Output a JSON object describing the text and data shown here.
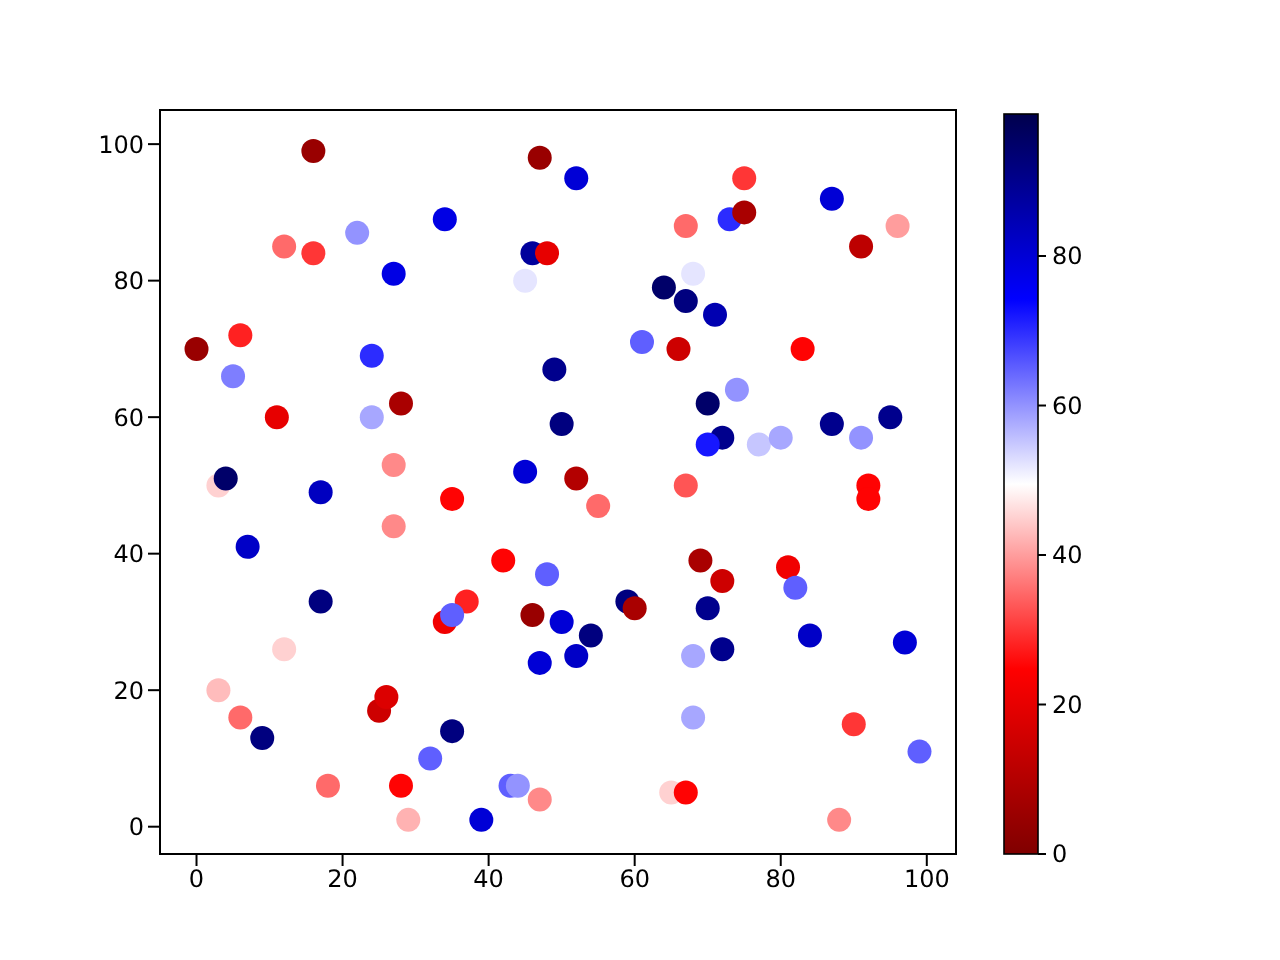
{
  "chart_data": {
    "type": "scatter",
    "xlim": [
      -5,
      104
    ],
    "ylim": [
      -4,
      105
    ],
    "xticks": [
      0,
      20,
      40,
      60,
      80,
      100
    ],
    "yticks": [
      0,
      20,
      40,
      60,
      80,
      100
    ],
    "clim": [
      0,
      99
    ],
    "cticks": [
      0,
      20,
      40,
      60,
      80
    ],
    "marker": "circle",
    "x": [
      0,
      16,
      47,
      34,
      22,
      52,
      75,
      12,
      16,
      27,
      46,
      48,
      45,
      67,
      73,
      75,
      87,
      96,
      91,
      64,
      67,
      71,
      68,
      61,
      66,
      83,
      49,
      5,
      6,
      24,
      28,
      24,
      11,
      50,
      74,
      70,
      72,
      70,
      77,
      80,
      87,
      91,
      95,
      3,
      4,
      17,
      27,
      35,
      45,
      52,
      55,
      67,
      92,
      92,
      7,
      27,
      17,
      42,
      37,
      34,
      35,
      48,
      46,
      50,
      47,
      52,
      54,
      59,
      60,
      69,
      72,
      70,
      72,
      68,
      68,
      81,
      82,
      84,
      97,
      3,
      12,
      25,
      26,
      6,
      9,
      18,
      28,
      29,
      32,
      35,
      39,
      43,
      44,
      47,
      65,
      67,
      90,
      88,
      99
    ],
    "values": [
      70,
      99,
      98,
      89,
      87,
      95,
      95,
      85,
      84,
      81,
      84,
      84,
      80,
      88,
      89,
      90,
      92,
      88,
      85,
      79,
      77,
      75,
      81,
      71,
      70,
      70,
      67,
      66,
      72,
      69,
      62,
      60,
      60,
      59,
      64,
      62,
      57,
      56,
      56,
      57,
      59,
      57,
      60,
      50,
      51,
      49,
      53,
      48,
      52,
      51,
      47,
      50,
      50,
      48,
      41,
      44,
      33,
      39,
      33,
      30,
      31,
      37,
      31,
      30,
      24,
      25,
      28,
      33,
      32,
      39,
      36,
      32,
      26,
      25,
      16,
      38,
      35,
      28,
      27,
      20,
      26,
      17,
      19,
      16,
      13,
      6,
      6,
      1,
      10,
      14,
      1,
      6,
      6,
      4,
      5,
      5,
      15,
      1,
      11
    ],
    "cvalues": [
      5,
      5,
      5,
      78,
      60,
      80,
      30,
      35,
      30,
      78,
      88,
      20,
      52,
      35,
      70,
      8,
      80,
      40,
      12,
      95,
      92,
      85,
      52,
      65,
      15,
      25,
      90,
      62,
      28,
      70,
      8,
      58,
      20,
      92,
      60,
      95,
      90,
      72,
      55,
      58,
      90,
      60,
      90,
      45,
      95,
      83,
      38,
      25,
      80,
      10,
      35,
      33,
      25,
      25,
      82,
      38,
      92,
      25,
      28,
      22,
      65,
      65,
      5,
      80,
      80,
      82,
      92,
      92,
      8,
      8,
      15,
      90,
      90,
      58,
      58,
      22,
      65,
      82,
      80,
      43,
      45,
      15,
      18,
      35,
      92,
      35,
      25,
      42,
      65,
      92,
      80,
      65,
      60,
      38,
      45,
      25,
      30,
      38,
      65
    ]
  }
}
